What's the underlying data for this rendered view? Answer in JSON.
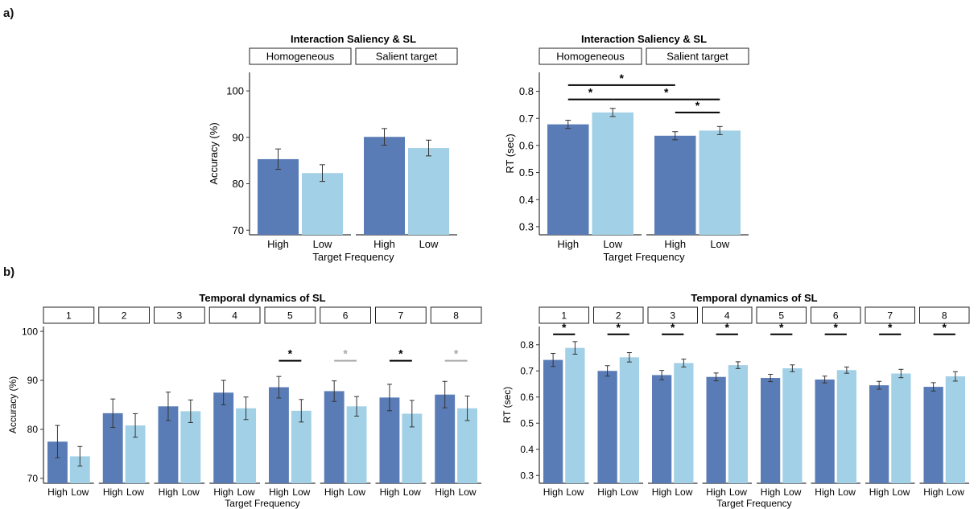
{
  "panel_labels": {
    "a": "a)",
    "b": "b)"
  },
  "colors": {
    "high": "#5a7cb6",
    "low": "#a2d0e6",
    "sig_black": "#000000",
    "sig_grey": "#a8a8a8"
  },
  "chart_data": [
    {
      "type": "bar",
      "title": "Interaction Saliency & SL",
      "facets": [
        "Homogeneous",
        "Salient target"
      ],
      "categories": [
        "High",
        "Low"
      ],
      "xlabel": "Target Frequency",
      "ylabel": "Accuracy (%)",
      "ylim": [
        69,
        104
      ],
      "yticks": [
        70,
        80,
        90,
        100
      ],
      "values": [
        [
          85.3,
          82.3
        ],
        [
          90.1,
          87.7
        ]
      ],
      "errors": [
        [
          2.2,
          1.8
        ],
        [
          1.8,
          1.7
        ]
      ],
      "significance": []
    },
    {
      "type": "bar",
      "title": "Interaction Saliency & SL",
      "facets": [
        "Homogeneous",
        "Salient target"
      ],
      "categories": [
        "High",
        "Low"
      ],
      "xlabel": "Target Frequency",
      "ylabel": "RT (sec)",
      "ylim": [
        0.27,
        0.87
      ],
      "yticks": [
        0.3,
        0.4,
        0.5,
        0.6,
        0.7,
        0.8
      ],
      "values": [
        [
          0.678,
          0.722
        ],
        [
          0.636,
          0.655
        ]
      ],
      "errors": [
        [
          0.015,
          0.015
        ],
        [
          0.015,
          0.015
        ]
      ],
      "significance": [
        {
          "from": [
            0,
            0
          ],
          "to": [
            1,
            0
          ],
          "y": 0.823,
          "label": "*"
        },
        {
          "from": [
            0,
            0
          ],
          "to": [
            0,
            1
          ],
          "y": 0.77,
          "label": "*"
        },
        {
          "from": [
            0,
            1
          ],
          "to": [
            1,
            1
          ],
          "y": 0.77,
          "label": "*"
        },
        {
          "from": [
            1,
            0
          ],
          "to": [
            1,
            1
          ],
          "y": 0.722,
          "label": "*"
        }
      ]
    },
    {
      "type": "bar",
      "title": "Temporal dynamics of SL",
      "facets": [
        "1",
        "2",
        "3",
        "4",
        "5",
        "6",
        "7",
        "8"
      ],
      "categories": [
        "High",
        "Low"
      ],
      "xlabel": "Target Frequency",
      "ylabel": "Accuracy (%)",
      "ylim": [
        69,
        101
      ],
      "yticks": [
        70,
        80,
        90,
        100
      ],
      "values": [
        [
          77.5,
          74.5
        ],
        [
          83.3,
          80.8
        ],
        [
          84.7,
          83.7
        ],
        [
          87.5,
          84.3
        ],
        [
          88.6,
          83.8
        ],
        [
          87.8,
          84.7
        ],
        [
          86.5,
          83.2
        ],
        [
          87.1,
          84.3
        ]
      ],
      "errors": [
        [
          3.3,
          2.0
        ],
        [
          2.9,
          2.4
        ],
        [
          2.9,
          2.3
        ],
        [
          2.5,
          2.3
        ],
        [
          2.2,
          2.3
        ],
        [
          2.1,
          2.0
        ],
        [
          2.7,
          2.7
        ],
        [
          2.7,
          2.5
        ]
      ],
      "significance": [
        {
          "facet": 4,
          "y": 94.0,
          "label": "*",
          "color": "black"
        },
        {
          "facet": 5,
          "y": 94.0,
          "label": "*",
          "color": "grey"
        },
        {
          "facet": 6,
          "y": 94.0,
          "label": "*",
          "color": "black"
        },
        {
          "facet": 7,
          "y": 94.0,
          "label": "*",
          "color": "grey"
        }
      ]
    },
    {
      "type": "bar",
      "title": "Temporal dynamics of SL",
      "facets": [
        "1",
        "2",
        "3",
        "4",
        "5",
        "6",
        "7",
        "8"
      ],
      "categories": [
        "High",
        "Low"
      ],
      "xlabel": "Target Frequency",
      "ylabel": "RT (sec)",
      "ylim": [
        0.27,
        0.87
      ],
      "yticks": [
        0.3,
        0.4,
        0.5,
        0.6,
        0.7,
        0.8
      ],
      "values": [
        [
          0.742,
          0.788
        ],
        [
          0.7,
          0.752
        ],
        [
          0.684,
          0.73
        ],
        [
          0.677,
          0.722
        ],
        [
          0.673,
          0.71
        ],
        [
          0.667,
          0.703
        ],
        [
          0.645,
          0.69
        ],
        [
          0.639,
          0.679
        ]
      ],
      "errors": [
        [
          0.025,
          0.024
        ],
        [
          0.02,
          0.018
        ],
        [
          0.018,
          0.015
        ],
        [
          0.015,
          0.013
        ],
        [
          0.014,
          0.013
        ],
        [
          0.013,
          0.012
        ],
        [
          0.015,
          0.016
        ],
        [
          0.016,
          0.018
        ]
      ],
      "significance": [
        {
          "facet": 0,
          "y": 0.84,
          "label": "*",
          "color": "black"
        },
        {
          "facet": 1,
          "y": 0.84,
          "label": "*",
          "color": "black"
        },
        {
          "facet": 2,
          "y": 0.84,
          "label": "*",
          "color": "black"
        },
        {
          "facet": 3,
          "y": 0.84,
          "label": "*",
          "color": "black"
        },
        {
          "facet": 4,
          "y": 0.84,
          "label": "*",
          "color": "black"
        },
        {
          "facet": 5,
          "y": 0.84,
          "label": "*",
          "color": "black"
        },
        {
          "facet": 6,
          "y": 0.84,
          "label": "*",
          "color": "black"
        },
        {
          "facet": 7,
          "y": 0.84,
          "label": "*",
          "color": "black"
        }
      ]
    }
  ]
}
